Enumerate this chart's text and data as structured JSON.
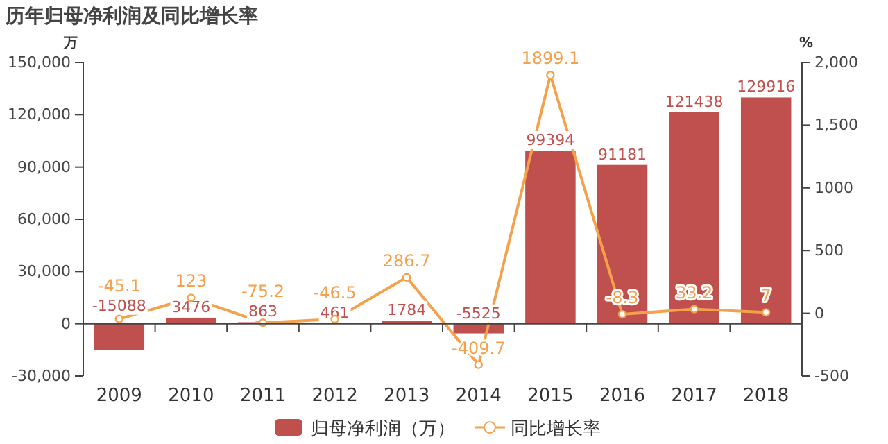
{
  "chart_data": {
    "type": "bar",
    "title": "历年归母净利润及同比增长率",
    "ylabel": "万",
    "y2label": "%",
    "categories": [
      "2009",
      "2010",
      "2011",
      "2012",
      "2013",
      "2014",
      "2015",
      "2016",
      "2017",
      "2018"
    ],
    "series": [
      {
        "name": "归母净利润（万）",
        "color": "#c0504d",
        "values": [
          -15088,
          3476,
          863,
          461,
          1784,
          -5525,
          99394,
          91181,
          121438,
          129916
        ]
      },
      {
        "name": "同比增长率",
        "type": "line",
        "axis": "y2",
        "color": "#f5a04a",
        "marker": "circle",
        "values": [
          -45.1,
          123,
          -75.2,
          -46.5,
          286.7,
          -409.7,
          1899.1,
          -8.3,
          33.2,
          7
        ]
      }
    ],
    "ylim": [
      -30000,
      150000
    ],
    "yticks": [
      {
        "value": -30000,
        "label": "-30,000"
      },
      0,
      {
        "value": 30000,
        "label": "30,000"
      },
      {
        "value": 60000,
        "label": "60,000"
      },
      {
        "value": 90000,
        "label": "90,000"
      },
      {
        "value": 120000,
        "label": "120,000"
      },
      {
        "value": 150000,
        "label": "150,000"
      }
    ],
    "y2lim": [
      -500,
      2000
    ],
    "y2ticks": [
      -500,
      0,
      500,
      1000,
      {
        "value": 1500,
        "label": "1,500"
      },
      {
        "value": 2000,
        "label": "2,000"
      }
    ],
    "data_labels": true,
    "legend": "bottom"
  }
}
